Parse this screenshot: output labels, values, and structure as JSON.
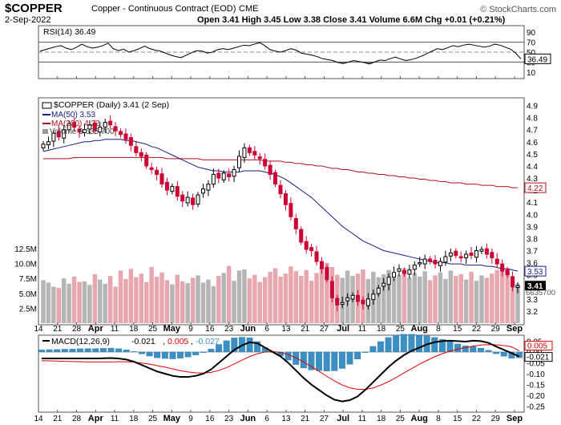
{
  "header": {
    "ticker": "$COPPER",
    "description": "Copper - Continuous Contract (EOD)",
    "exchange": "CME",
    "date": "2-Sep-2022",
    "ohlc": "Open 3.41 High 3.45 Low 3.38 Close 3.41 Volume 6.6M Chg +0.01 (+0.21%)",
    "watermark": "© StockCharts.com"
  },
  "rsi": {
    "label": "RSI(14) 36.49",
    "ticks": [
      "90",
      "70",
      "50",
      "30",
      "10"
    ],
    "current": "36.49",
    "values": [
      52,
      55,
      58,
      61,
      63,
      58,
      55,
      60,
      66,
      61,
      58,
      60,
      63,
      68,
      57,
      53,
      56,
      50,
      53,
      57,
      62,
      57,
      54,
      52,
      48,
      44,
      41,
      39,
      44,
      49,
      53,
      52,
      48,
      50,
      55,
      57,
      55,
      58,
      61,
      64,
      63,
      66,
      69,
      63,
      55,
      52,
      50,
      53,
      57,
      54,
      48,
      46,
      44,
      41,
      37,
      35,
      33,
      29,
      27,
      30,
      33,
      31,
      29,
      26,
      30,
      34,
      33,
      37,
      40,
      36,
      33,
      35,
      38,
      42,
      47,
      52,
      57,
      55,
      59,
      63,
      61,
      64,
      66,
      64,
      62,
      60,
      62,
      66,
      64,
      60,
      56,
      48,
      36.49
    ]
  },
  "price": {
    "legend_main": "$COPPER (Daily) 3.41 (2 Sep)",
    "legend_ma50": "MA(50) 3.53",
    "legend_ma200": "MA(200) 4.22",
    "legend_vol": "Volume 6,635,700",
    "ticks": [
      "4.9",
      "4.8",
      "4.7",
      "4.6",
      "4.5",
      "4.4",
      "4.3",
      "4.2",
      "4.1",
      "4.0",
      "3.9",
      "3.8",
      "3.7",
      "3.6",
      "3.5",
      "3.4",
      "3.3",
      "3.2"
    ],
    "vol_ticks": [
      "12.5M",
      "10.0M",
      "7.5M",
      "5.0M",
      "2.5M"
    ],
    "ma50_label": "3.53",
    "ma200_label": "4.22",
    "close_label": "3.41",
    "vol_label": "6635700",
    "closes": [
      4.58,
      4.6,
      4.67,
      4.64,
      4.7,
      4.75,
      4.72,
      4.68,
      4.7,
      4.74,
      4.69,
      4.72,
      4.76,
      4.74,
      4.69,
      4.66,
      4.62,
      4.57,
      4.51,
      4.48,
      4.4,
      4.37,
      4.33,
      4.25,
      4.2,
      4.23,
      4.15,
      4.11,
      4.14,
      4.08,
      4.16,
      4.21,
      4.25,
      4.33,
      4.3,
      4.34,
      4.31,
      4.37,
      4.48,
      4.55,
      4.51,
      4.49,
      4.46,
      4.4,
      4.33,
      4.25,
      4.17,
      4.08,
      3.98,
      3.88,
      3.77,
      3.71,
      3.7,
      3.61,
      3.55,
      3.46,
      3.31,
      3.25,
      3.27,
      3.31,
      3.33,
      3.28,
      3.26,
      3.3,
      3.34,
      3.39,
      3.43,
      3.48,
      3.52,
      3.55,
      3.51,
      3.54,
      3.58,
      3.6,
      3.63,
      3.61,
      3.59,
      3.61,
      3.65,
      3.68,
      3.66,
      3.64,
      3.67,
      3.66,
      3.7,
      3.71,
      3.67,
      3.64,
      3.59,
      3.53,
      3.5,
      3.4,
      3.41
    ],
    "ma50": [
      4.52,
      4.53,
      4.54,
      4.55,
      4.56,
      4.57,
      4.58,
      4.59,
      4.6,
      4.6,
      4.61,
      4.61,
      4.62,
      4.62,
      4.62,
      4.62,
      4.61,
      4.61,
      4.6,
      4.59,
      4.58,
      4.56,
      4.55,
      4.53,
      4.51,
      4.49,
      4.47,
      4.45,
      4.43,
      4.41,
      4.39,
      4.38,
      4.37,
      4.36,
      4.36,
      4.35,
      4.35,
      4.35,
      4.35,
      4.36,
      4.36,
      4.36,
      4.36,
      4.35,
      4.34,
      4.33,
      4.31,
      4.29,
      4.26,
      4.23,
      4.2,
      4.17,
      4.14,
      4.1,
      4.06,
      4.02,
      3.98,
      3.94,
      3.9,
      3.87,
      3.84,
      3.81,
      3.78,
      3.76,
      3.74,
      3.72,
      3.7,
      3.69,
      3.68,
      3.67,
      3.66,
      3.65,
      3.64,
      3.63,
      3.62,
      3.61,
      3.6,
      3.6,
      3.6,
      3.59,
      3.59,
      3.59,
      3.58,
      3.58,
      3.58,
      3.58,
      3.57,
      3.57,
      3.56,
      3.55,
      3.55,
      3.54,
      3.53
    ],
    "ma200": [
      4.46,
      4.46,
      4.46,
      4.46,
      4.46,
      4.46,
      4.47,
      4.47,
      4.47,
      4.47,
      4.47,
      4.47,
      4.47,
      4.47,
      4.47,
      4.47,
      4.47,
      4.47,
      4.47,
      4.47,
      4.47,
      4.47,
      4.47,
      4.47,
      4.46,
      4.46,
      4.46,
      4.46,
      4.46,
      4.46,
      4.46,
      4.45,
      4.45,
      4.45,
      4.45,
      4.45,
      4.45,
      4.45,
      4.45,
      4.45,
      4.45,
      4.45,
      4.45,
      4.44,
      4.44,
      4.44,
      4.44,
      4.43,
      4.43,
      4.42,
      4.42,
      4.41,
      4.41,
      4.4,
      4.4,
      4.39,
      4.38,
      4.38,
      4.37,
      4.37,
      4.36,
      4.35,
      4.35,
      4.34,
      4.34,
      4.33,
      4.33,
      4.32,
      4.32,
      4.31,
      4.31,
      4.3,
      4.3,
      4.29,
      4.29,
      4.28,
      4.28,
      4.27,
      4.27,
      4.26,
      4.26,
      4.26,
      4.25,
      4.25,
      4.25,
      4.24,
      4.24,
      4.24,
      4.23,
      4.23,
      4.23,
      4.22,
      4.22
    ],
    "volumes": [
      7.2,
      6.8,
      6.1,
      5.9,
      7.5,
      6.6,
      7.8,
      6.9,
      7.0,
      6.4,
      8.2,
      7.3,
      6.6,
      7.9,
      6.1,
      8.8,
      7.4,
      9.1,
      7.7,
      8.3,
      6.9,
      9.4,
      7.8,
      8.5,
      7.2,
      6.5,
      8.1,
      7.0,
      6.7,
      7.6,
      8.0,
      6.8,
      7.3,
      6.2,
      7.9,
      8.4,
      9.6,
      7.1,
      8.8,
      9.0,
      7.5,
      8.1,
      6.9,
      7.7,
      8.6,
      9.2,
      7.8,
      8.3,
      9.5,
      8.7,
      7.9,
      8.9,
      7.1,
      8.4,
      9.3,
      10.1,
      9.4,
      8.1,
      7.6,
      8.8,
      7.9,
      8.3,
      9.0,
      7.4,
      8.6,
      7.7,
      8.2,
      8.9,
      7.5,
      8.1,
      9.2,
      7.6,
      8.4,
      7.8,
      8.7,
      7.2,
      8.0,
      8.5,
      7.4,
      8.8,
      7.9,
      8.2,
      7.3,
      8.6,
      7.1,
      8.0,
      7.6,
      8.3,
      8.9,
      9.4,
      9.0,
      7.8,
      6.6
    ]
  },
  "macd": {
    "label_prefix": "MACD(12,26,9)",
    "label_macd": "-0.021",
    "label_signal": "0.005",
    "label_hist": "-0.027",
    "ticks": [
      "0.05",
      "0.00",
      "-0.05",
      "-0.10",
      "-0.15",
      "-0.20",
      "-0.25"
    ],
    "current_signal": "0.005",
    "current_macd": "-0.021",
    "macd_values": [
      -0.03,
      -0.03,
      -0.03,
      -0.03,
      -0.03,
      -0.03,
      -0.03,
      -0.03,
      -0.029,
      -0.028,
      -0.03,
      -0.035,
      -0.045,
      -0.06,
      -0.075,
      -0.09,
      -0.1,
      -0.11,
      -0.115,
      -0.115,
      -0.11,
      -0.1,
      -0.08,
      -0.05,
      -0.02,
      0.01,
      0.03,
      0.045,
      0.04,
      0.02,
      0.0,
      -0.02,
      -0.05,
      -0.085,
      -0.12,
      -0.15,
      -0.175,
      -0.2,
      -0.22,
      -0.228,
      -0.222,
      -0.205,
      -0.175,
      -0.14,
      -0.105,
      -0.07,
      -0.04,
      -0.015,
      0.005,
      0.02,
      0.035,
      0.045,
      0.05,
      0.052,
      0.05,
      0.048,
      0.052,
      0.05,
      0.042,
      0.025,
      0.01,
      -0.005,
      -0.021
    ],
    "signal_values": [
      -0.04,
      -0.041,
      -0.042,
      -0.043,
      -0.044,
      -0.045,
      -0.046,
      -0.046,
      -0.046,
      -0.046,
      -0.045,
      -0.045,
      -0.047,
      -0.051,
      -0.056,
      -0.063,
      -0.07,
      -0.078,
      -0.086,
      -0.092,
      -0.096,
      -0.097,
      -0.094,
      -0.085,
      -0.072,
      -0.055,
      -0.038,
      -0.021,
      -0.008,
      0.0,
      0.002,
      -0.002,
      -0.012,
      -0.027,
      -0.046,
      -0.067,
      -0.089,
      -0.112,
      -0.133,
      -0.152,
      -0.165,
      -0.172,
      -0.172,
      -0.166,
      -0.153,
      -0.137,
      -0.118,
      -0.097,
      -0.077,
      -0.057,
      -0.039,
      -0.022,
      -0.008,
      0.004,
      0.013,
      0.02,
      0.027,
      0.032,
      0.034,
      0.033,
      0.03,
      0.024,
      0.005
    ],
    "hist_values": [
      0.01,
      0.011,
      0.012,
      0.013,
      0.014,
      0.015,
      0.016,
      0.016,
      0.017,
      0.018,
      0.015,
      0.01,
      0.002,
      -0.009,
      -0.019,
      -0.027,
      -0.03,
      -0.032,
      -0.029,
      -0.023,
      -0.014,
      -0.003,
      0.014,
      0.035,
      0.052,
      0.065,
      0.068,
      0.066,
      0.048,
      0.02,
      -0.002,
      -0.018,
      -0.038,
      -0.058,
      -0.074,
      -0.083,
      -0.086,
      -0.088,
      -0.087,
      -0.076,
      -0.057,
      -0.033,
      -0.003,
      0.026,
      0.048,
      0.067,
      0.078,
      0.082,
      0.082,
      0.077,
      0.074,
      0.067,
      0.058,
      0.048,
      0.037,
      0.028,
      0.025,
      0.018,
      0.008,
      -0.008,
      -0.02,
      -0.029,
      -0.027
    ]
  },
  "x_axis": {
    "labels": [
      "14",
      "21",
      "28",
      "Apr",
      "11",
      "18",
      "25",
      "May",
      "9",
      "16",
      "23",
      "Jun",
      "6",
      "13",
      "21",
      "27",
      "Jul",
      "11",
      "18",
      "25",
      "Aug",
      "8",
      "15",
      "22",
      "29",
      "Sep"
    ],
    "bold": [
      "Apr",
      "May",
      "Jun",
      "Jul",
      "Aug",
      "Sep"
    ]
  },
  "colors": {
    "up": "#000000",
    "down": "#cc0033",
    "ma50": "#1a1a8c",
    "ma200": "#b0101a",
    "vol_up": "#b5b5b5",
    "vol_down": "#e8a6ae",
    "macd_line": "#000000",
    "signal_line": "#e00000",
    "histogram": "#3a8fc4",
    "rsi_high": "#1f7fbf",
    "rsi_low": "#8a5a5a"
  },
  "chart_data": {
    "type": "line",
    "title": "$COPPER Copper - Continuous Contract (EOD) CME",
    "panels": [
      "RSI(14)",
      "Price (Daily) with MA(50), MA(200), Volume",
      "MACD(12,26,9)"
    ],
    "x_range": [
      "14 Mar 2022",
      "2 Sep 2022"
    ],
    "price_ylim": [
      3.1,
      4.95
    ],
    "rsi_ylim": [
      0,
      100
    ],
    "macd_ylim": [
      -0.27,
      0.07
    ],
    "last": {
      "open": 3.41,
      "high": 3.45,
      "low": 3.38,
      "close": 3.41,
      "volume": "6.6M",
      "chg": "+0.01 (+0.21%)"
    }
  }
}
